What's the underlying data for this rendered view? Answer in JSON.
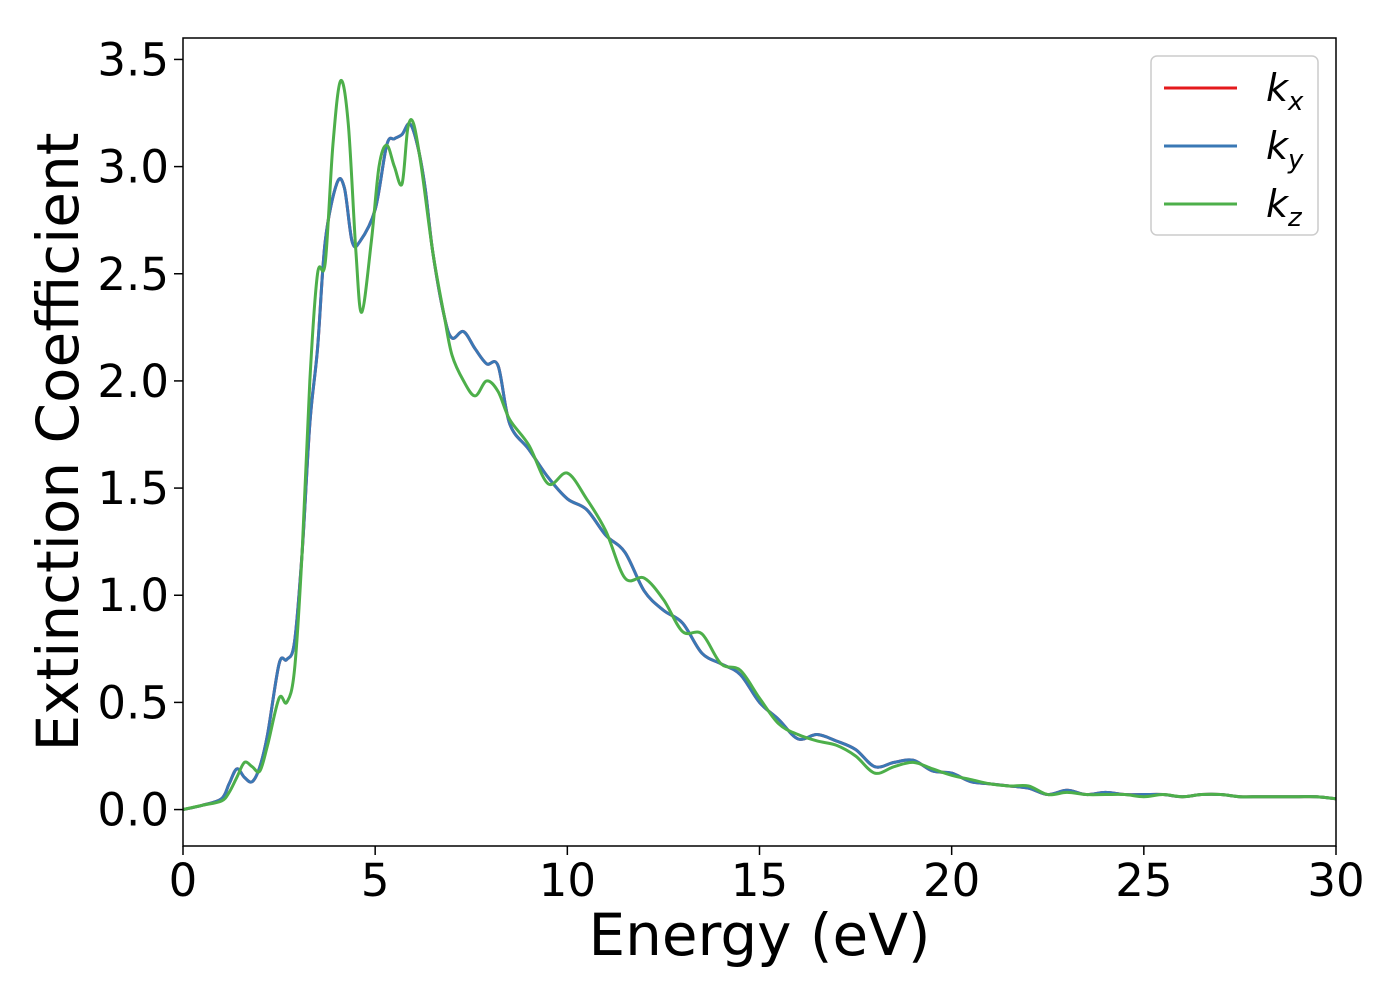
{
  "chart_data": {
    "type": "line",
    "title": "",
    "xlabel": "Energy (eV)",
    "ylabel": "Extinction Coefficient",
    "xlim": [
      0,
      30
    ],
    "ylim": [
      -0.17,
      3.6
    ],
    "xticks": [
      0,
      5,
      10,
      15,
      20,
      25,
      30
    ],
    "xtick_labels": [
      "0",
      "5",
      "10",
      "15",
      "20",
      "25",
      "30"
    ],
    "yticks": [
      0.0,
      0.5,
      1.0,
      1.5,
      2.0,
      2.5,
      3.0,
      3.5
    ],
    "ytick_labels": [
      "0.0",
      "0.5",
      "1.0",
      "1.5",
      "2.0",
      "2.5",
      "3.0",
      "3.5"
    ],
    "grid": false,
    "legend_position": "top-right",
    "series": [
      {
        "name": "k",
        "subscript": "x",
        "color": "#e41a1c",
        "x": [
          0,
          0.5,
          1.0,
          1.2,
          1.4,
          1.6,
          1.8,
          2.0,
          2.2,
          2.5,
          2.7,
          2.9,
          3.1,
          3.3,
          3.5,
          3.7,
          4.0,
          4.2,
          4.4,
          4.6,
          5.0,
          5.3,
          5.5,
          5.7,
          5.9,
          6.1,
          6.3,
          6.5,
          6.8,
          7.0,
          7.3,
          7.6,
          7.9,
          8.2,
          8.5,
          9.0,
          9.5,
          10.0,
          10.5,
          11.0,
          11.5,
          12.0,
          12.5,
          13.0,
          13.5,
          14.0,
          14.5,
          15.0,
          15.5,
          16.0,
          16.5,
          17.0,
          17.5,
          18.0,
          18.5,
          19.0,
          19.5,
          20.0,
          20.5,
          21.0,
          21.5,
          22.0,
          22.5,
          23.0,
          23.5,
          24.0,
          24.5,
          25.0,
          25.5,
          26.0,
          26.5,
          27.0,
          27.5,
          28.0,
          28.5,
          29.0,
          29.5,
          30.0
        ],
        "y": [
          0.0,
          0.02,
          0.05,
          0.12,
          0.19,
          0.15,
          0.13,
          0.2,
          0.35,
          0.68,
          0.7,
          0.78,
          1.2,
          1.8,
          2.15,
          2.65,
          2.92,
          2.9,
          2.65,
          2.65,
          2.8,
          3.1,
          3.13,
          3.15,
          3.2,
          3.1,
          2.9,
          2.6,
          2.3,
          2.2,
          2.23,
          2.15,
          2.08,
          2.07,
          1.8,
          1.68,
          1.55,
          1.45,
          1.4,
          1.28,
          1.2,
          1.02,
          0.93,
          0.87,
          0.73,
          0.68,
          0.63,
          0.5,
          0.42,
          0.33,
          0.35,
          0.32,
          0.28,
          0.2,
          0.22,
          0.23,
          0.18,
          0.17,
          0.13,
          0.12,
          0.11,
          0.1,
          0.07,
          0.09,
          0.07,
          0.08,
          0.07,
          0.07,
          0.07,
          0.06,
          0.07,
          0.07,
          0.06,
          0.06,
          0.06,
          0.06,
          0.06,
          0.05
        ]
      },
      {
        "name": "k",
        "subscript": "y",
        "color": "#3a78b5",
        "x": [
          0,
          0.5,
          1.0,
          1.2,
          1.4,
          1.6,
          1.8,
          2.0,
          2.2,
          2.5,
          2.7,
          2.9,
          3.1,
          3.3,
          3.5,
          3.7,
          4.0,
          4.2,
          4.4,
          4.6,
          5.0,
          5.3,
          5.5,
          5.7,
          5.9,
          6.1,
          6.3,
          6.5,
          6.8,
          7.0,
          7.3,
          7.6,
          7.9,
          8.2,
          8.5,
          9.0,
          9.5,
          10.0,
          10.5,
          11.0,
          11.5,
          12.0,
          12.5,
          13.0,
          13.5,
          14.0,
          14.5,
          15.0,
          15.5,
          16.0,
          16.5,
          17.0,
          17.5,
          18.0,
          18.5,
          19.0,
          19.5,
          20.0,
          20.5,
          21.0,
          21.5,
          22.0,
          22.5,
          23.0,
          23.5,
          24.0,
          24.5,
          25.0,
          25.5,
          26.0,
          26.5,
          27.0,
          27.5,
          28.0,
          28.5,
          29.0,
          29.5,
          30.0
        ],
        "y": [
          0.0,
          0.02,
          0.05,
          0.12,
          0.19,
          0.15,
          0.13,
          0.2,
          0.35,
          0.68,
          0.7,
          0.78,
          1.2,
          1.8,
          2.15,
          2.65,
          2.92,
          2.9,
          2.65,
          2.65,
          2.8,
          3.1,
          3.13,
          3.15,
          3.2,
          3.1,
          2.9,
          2.6,
          2.3,
          2.2,
          2.23,
          2.15,
          2.08,
          2.07,
          1.8,
          1.68,
          1.55,
          1.45,
          1.4,
          1.28,
          1.2,
          1.02,
          0.93,
          0.87,
          0.73,
          0.68,
          0.63,
          0.5,
          0.42,
          0.33,
          0.35,
          0.32,
          0.28,
          0.2,
          0.22,
          0.23,
          0.18,
          0.17,
          0.13,
          0.12,
          0.11,
          0.1,
          0.07,
          0.09,
          0.07,
          0.08,
          0.07,
          0.07,
          0.07,
          0.06,
          0.07,
          0.07,
          0.06,
          0.06,
          0.06,
          0.06,
          0.06,
          0.05
        ]
      },
      {
        "name": "k",
        "subscript": "z",
        "color": "#4daf4a",
        "x": [
          0,
          0.5,
          1.0,
          1.2,
          1.4,
          1.6,
          1.8,
          2.0,
          2.2,
          2.5,
          2.7,
          2.9,
          3.1,
          3.3,
          3.5,
          3.7,
          3.9,
          4.1,
          4.3,
          4.5,
          4.65,
          4.9,
          5.1,
          5.3,
          5.5,
          5.7,
          5.85,
          6.0,
          6.2,
          6.5,
          6.8,
          7.0,
          7.3,
          7.6,
          7.9,
          8.2,
          8.5,
          9.0,
          9.5,
          10.0,
          10.5,
          11.0,
          11.5,
          12.0,
          12.5,
          13.0,
          13.5,
          14.0,
          14.5,
          15.0,
          15.5,
          16.0,
          16.5,
          17.0,
          17.5,
          18.0,
          18.5,
          19.0,
          19.5,
          20.0,
          20.5,
          21.0,
          21.5,
          22.0,
          22.5,
          23.0,
          23.5,
          24.0,
          24.5,
          25.0,
          25.5,
          26.0,
          26.5,
          27.0,
          27.5,
          28.0,
          28.5,
          29.0,
          29.5,
          30.0
        ],
        "y": [
          0.0,
          0.02,
          0.04,
          0.08,
          0.15,
          0.22,
          0.2,
          0.18,
          0.3,
          0.52,
          0.5,
          0.65,
          1.2,
          2.0,
          2.5,
          2.55,
          3.1,
          3.4,
          3.2,
          2.6,
          2.32,
          2.65,
          3.0,
          3.1,
          3.0,
          2.92,
          3.18,
          3.2,
          3.0,
          2.6,
          2.3,
          2.12,
          2.0,
          1.93,
          2.0,
          1.95,
          1.82,
          1.7,
          1.52,
          1.57,
          1.45,
          1.3,
          1.08,
          1.08,
          0.98,
          0.83,
          0.82,
          0.68,
          0.65,
          0.52,
          0.4,
          0.35,
          0.32,
          0.3,
          0.25,
          0.17,
          0.2,
          0.22,
          0.19,
          0.16,
          0.14,
          0.12,
          0.11,
          0.11,
          0.07,
          0.08,
          0.07,
          0.07,
          0.07,
          0.06,
          0.07,
          0.06,
          0.07,
          0.07,
          0.06,
          0.06,
          0.06,
          0.06,
          0.06,
          0.05
        ]
      }
    ]
  }
}
